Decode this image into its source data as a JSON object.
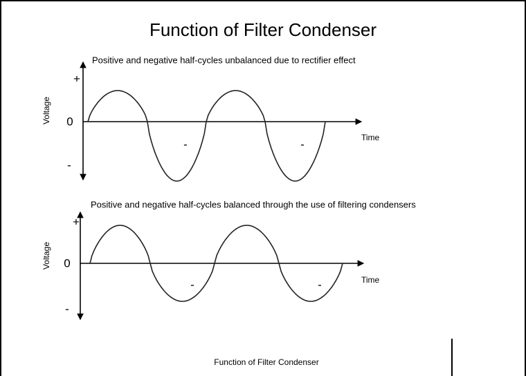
{
  "title": "Function of Filter Condenser",
  "panels": [
    {
      "caption": "Positive and negative half-cycles unbalanced due to rectifier effect",
      "y_label": "Voltage",
      "plus": "+",
      "zero": "0",
      "minus": "-",
      "x_label": "Time",
      "half_markers": [
        "-",
        "-"
      ]
    },
    {
      "caption": "Positive and negative half-cycles balanced through the use of filtering condensers",
      "y_label": "Voltage",
      "plus": "+",
      "zero": "0",
      "minus": "-",
      "x_label": "Time",
      "half_markers": [
        "-",
        "-"
      ]
    }
  ],
  "footer": "Function of Filter Condenser"
}
